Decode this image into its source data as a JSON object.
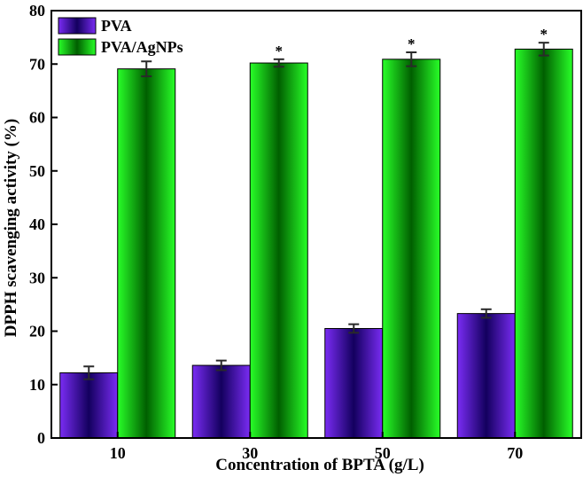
{
  "chart_data": {
    "type": "bar",
    "title": "",
    "xlabel": "Concentration of BPTA (g/L)",
    "ylabel": "DPPH scavenging activity (%)",
    "categories": [
      "10",
      "30",
      "50",
      "70"
    ],
    "ylim": [
      0,
      80
    ],
    "yticks": [
      0,
      10,
      20,
      30,
      40,
      50,
      60,
      70,
      80
    ],
    "grid": false,
    "legend_position": "top-left",
    "series": [
      {
        "name": "PVA",
        "color": "#6a1fe0",
        "values": [
          12.2,
          13.6,
          20.5,
          23.3
        ],
        "errors": [
          1.2,
          0.9,
          0.8,
          0.8
        ],
        "annotations": [
          "",
          "",
          "",
          ""
        ]
      },
      {
        "name": "PVA/AgNPs",
        "color": "#18d018",
        "values": [
          69.1,
          70.2,
          70.9,
          72.8
        ],
        "errors": [
          1.4,
          0.7,
          1.3,
          1.2
        ],
        "annotations": [
          "",
          "*",
          "*",
          "*"
        ]
      }
    ]
  }
}
